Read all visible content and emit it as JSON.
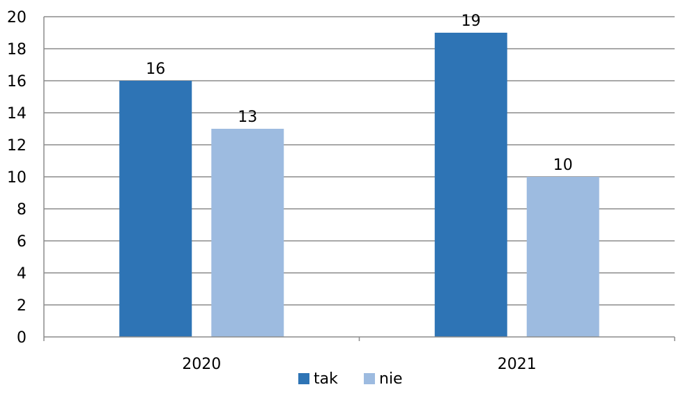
{
  "chart_data": {
    "type": "bar",
    "categories": [
      "2020",
      "2021"
    ],
    "series": [
      {
        "name": "tak",
        "values": [
          16,
          19
        ],
        "color": "#2e74b5"
      },
      {
        "name": "nie",
        "values": [
          13,
          10
        ],
        "color": "#9dbbe0"
      }
    ],
    "ylim": [
      0,
      20
    ],
    "yticks": [
      0,
      2,
      4,
      6,
      8,
      10,
      12,
      14,
      16,
      18,
      20
    ],
    "grid": true,
    "legend_position": "bottom"
  }
}
